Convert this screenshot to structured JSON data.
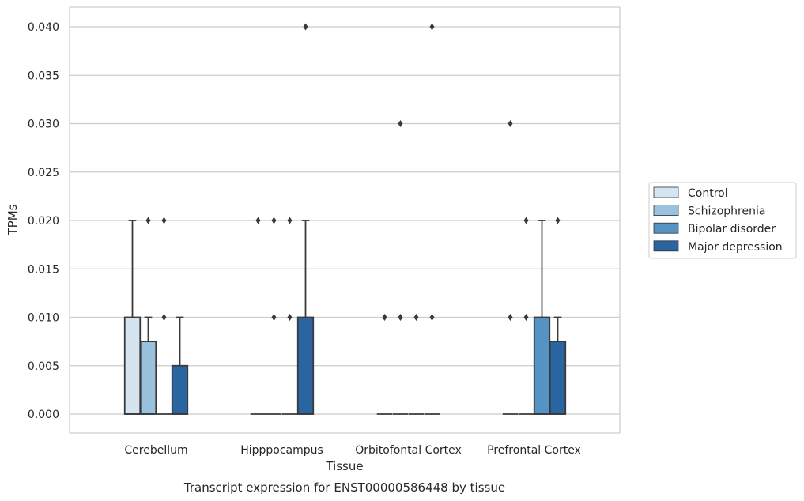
{
  "chart_data": {
    "type": "boxplot",
    "title": "Transcript expression for ENST00000586448 by tissue",
    "xlabel": "Tissue",
    "ylabel": "TPMs",
    "ylim": [
      -0.002,
      0.042
    ],
    "yticks": [
      "0.000",
      "0.005",
      "0.010",
      "0.015",
      "0.020",
      "0.025",
      "0.030",
      "0.035",
      "0.040"
    ],
    "ytick_values": [
      0,
      0.005,
      0.01,
      0.015,
      0.02,
      0.025,
      0.03,
      0.035,
      0.04
    ],
    "grid": true,
    "legend_position": "right",
    "categories": [
      "Cerebellum",
      "Hipppocampus",
      "Orbitofontal Cortex",
      "Prefrontal Cortex"
    ],
    "series": [
      {
        "name": "Control",
        "color": "#d6e4f0",
        "boxes": [
          {
            "q1": 0,
            "median": 0,
            "q3": 0.01,
            "whisker_low": 0,
            "whisker_high": 0.02,
            "outliers": []
          },
          {
            "q1": 0,
            "median": 0,
            "q3": 0,
            "whisker_low": 0,
            "whisker_high": 0,
            "outliers": [
              0.02
            ]
          },
          {
            "q1": 0,
            "median": 0,
            "q3": 0,
            "whisker_low": 0,
            "whisker_high": 0,
            "outliers": [
              0.01
            ]
          },
          {
            "q1": 0,
            "median": 0,
            "q3": 0,
            "whisker_low": 0,
            "whisker_high": 0,
            "outliers": [
              0.01,
              0.03
            ]
          }
        ]
      },
      {
        "name": "Schizophrenia",
        "color": "#9ac2dc",
        "boxes": [
          {
            "q1": 0,
            "median": 0,
            "q3": 0.0075,
            "whisker_low": 0,
            "whisker_high": 0.01,
            "outliers": [
              0.02
            ]
          },
          {
            "q1": 0,
            "median": 0,
            "q3": 0,
            "whisker_low": 0,
            "whisker_high": 0,
            "outliers": [
              0.01,
              0.02
            ]
          },
          {
            "q1": 0,
            "median": 0,
            "q3": 0,
            "whisker_low": 0,
            "whisker_high": 0,
            "outliers": [
              0.01,
              0.03
            ]
          },
          {
            "q1": 0,
            "median": 0,
            "q3": 0,
            "whisker_low": 0,
            "whisker_high": 0,
            "outliers": [
              0.01,
              0.02
            ]
          }
        ]
      },
      {
        "name": "Bipolar disorder",
        "color": "#5493c3",
        "boxes": [
          {
            "q1": 0,
            "median": 0,
            "q3": 0,
            "whisker_low": 0,
            "whisker_high": 0,
            "outliers": [
              0.01,
              0.02
            ]
          },
          {
            "q1": 0,
            "median": 0,
            "q3": 0,
            "whisker_low": 0,
            "whisker_high": 0,
            "outliers": [
              0.01,
              0.02
            ]
          },
          {
            "q1": 0,
            "median": 0,
            "q3": 0,
            "whisker_low": 0,
            "whisker_high": 0,
            "outliers": [
              0.01
            ]
          },
          {
            "q1": 0,
            "median": 0,
            "q3": 0.01,
            "whisker_low": 0,
            "whisker_high": 0.02,
            "outliers": []
          }
        ]
      },
      {
        "name": "Major depression",
        "color": "#2a65a2",
        "boxes": [
          {
            "q1": 0,
            "median": 0,
            "q3": 0.005,
            "whisker_low": 0,
            "whisker_high": 0.01,
            "outliers": []
          },
          {
            "q1": 0,
            "median": 0,
            "q3": 0.01,
            "whisker_low": 0,
            "whisker_high": 0.02,
            "outliers": [
              0.04
            ]
          },
          {
            "q1": 0,
            "median": 0,
            "q3": 0,
            "whisker_low": 0,
            "whisker_high": 0,
            "outliers": [
              0.01,
              0.04
            ]
          },
          {
            "q1": 0,
            "median": 0,
            "q3": 0.0075,
            "whisker_low": 0,
            "whisker_high": 0.01,
            "outliers": [
              0.02
            ]
          }
        ]
      }
    ]
  }
}
